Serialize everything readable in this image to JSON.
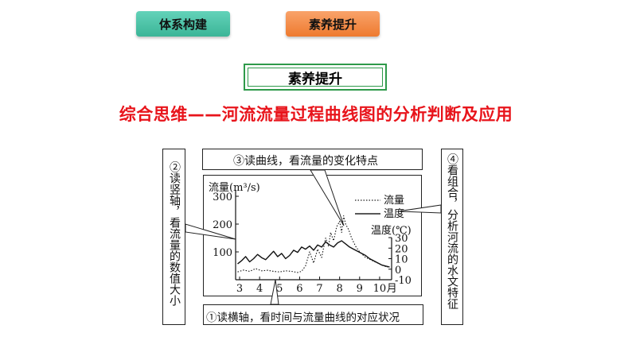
{
  "tabs": [
    {
      "label": "体系构建",
      "color": "#4cc3a6"
    },
    {
      "label": "素养提升",
      "color": "#f28b45"
    }
  ],
  "section_title": "素养提升",
  "headline": "综合思维——河流流量过程曲线图的分析判断及应用",
  "callouts": {
    "top": "③读曲线，看流量的变化特点",
    "bottom": "①读横轴，看时间与流量曲线的对应状况",
    "left": "②读竖轴，看流量的数值大小",
    "right": "④看组合，分析河流的水文特征"
  },
  "chart_data": {
    "type": "line",
    "ylabel_left": "流量(m³/s)",
    "ylabel_right": "温度(℃)",
    "month_unit": "月",
    "x_categories": [
      "3",
      "4",
      "5",
      "6",
      "7",
      "8",
      "9",
      "10"
    ],
    "y_left_ticks": [
      "300",
      "200",
      "100"
    ],
    "y_right_ticks": [
      "30",
      "20",
      "10",
      "0",
      "-10"
    ],
    "ylim_left": [
      0,
      300
    ],
    "ylim_right": [
      -10,
      30
    ],
    "legend": [
      "流量",
      "温度"
    ],
    "series": [
      {
        "name": "流量",
        "style": "dotted",
        "x": [
          2.9,
          3.2,
          3.5,
          3.8,
          4.1,
          4.4,
          4.7,
          5.0,
          5.3,
          5.6,
          5.9,
          6.1,
          6.3,
          6.5,
          6.7,
          6.9,
          7.1,
          7.3,
          7.45,
          7.55,
          7.7,
          7.85,
          8.0,
          8.1,
          8.2,
          8.3,
          8.45,
          8.6,
          8.8,
          9.0,
          9.3,
          9.6,
          9.9,
          10.2,
          10.4
        ],
        "values": [
          28,
          35,
          30,
          40,
          32,
          34,
          30,
          28,
          32,
          30,
          26,
          30,
          50,
          100,
          60,
          110,
          80,
          150,
          120,
          170,
          140,
          190,
          210,
          170,
          230,
          200,
          180,
          150,
          120,
          100,
          80,
          70,
          60,
          50,
          45
        ]
      },
      {
        "name": "温度",
        "style": "solid",
        "x": [
          2.9,
          3.1,
          3.3,
          3.5,
          3.7,
          3.9,
          4.1,
          4.3,
          4.5,
          4.7,
          4.9,
          5.1,
          5.3,
          5.5,
          5.7,
          5.9,
          6.1,
          6.3,
          6.5,
          6.7,
          6.9,
          7.1,
          7.3,
          7.5,
          7.7,
          7.9,
          8.1,
          8.3,
          8.5,
          8.7,
          8.9,
          9.1,
          9.3,
          9.5,
          9.7,
          9.9,
          10.1,
          10.3,
          10.5
        ],
        "values": [
          5,
          8,
          12,
          7,
          10,
          14,
          11,
          9,
          13,
          17,
          12,
          15,
          10,
          13,
          18,
          16,
          21,
          19,
          22,
          18,
          23,
          21,
          26,
          23,
          21,
          25,
          27,
          24,
          21,
          19,
          17,
          15,
          13,
          10,
          8,
          6,
          4,
          3,
          2
        ]
      }
    ]
  }
}
